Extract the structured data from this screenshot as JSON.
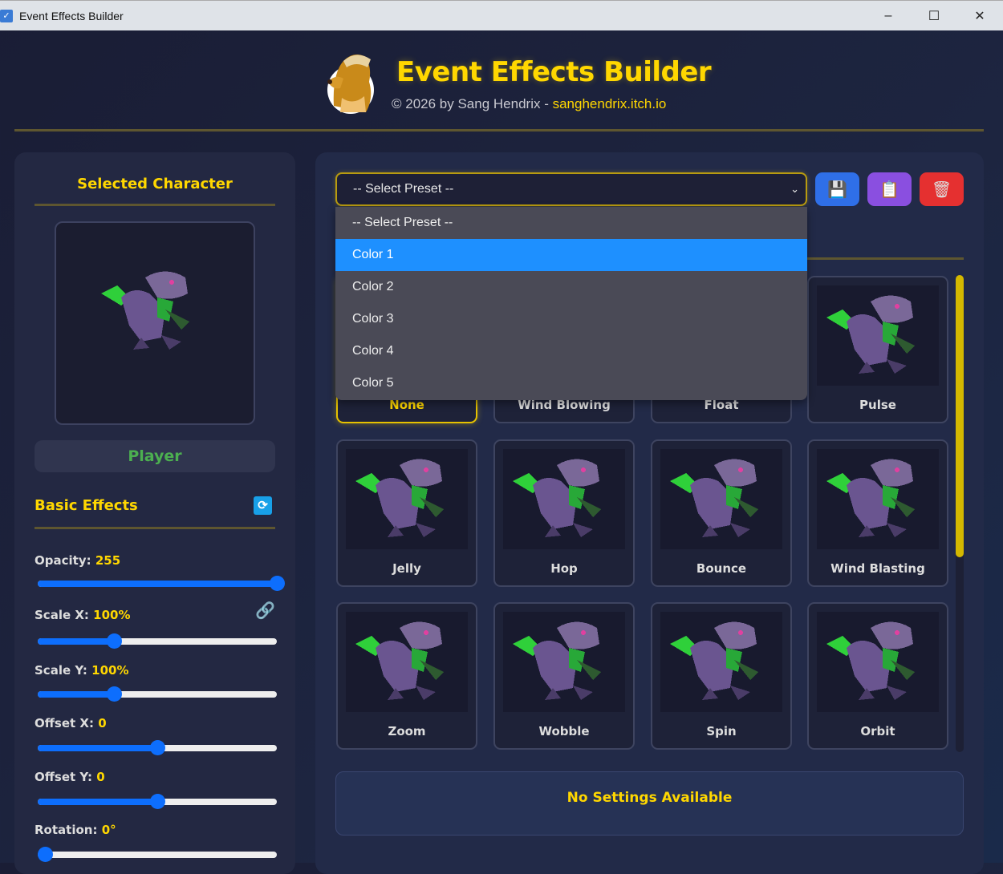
{
  "window": {
    "title": "Event Effects Builder",
    "minimize": "–",
    "maximize": "☐",
    "close": "✕"
  },
  "header": {
    "title": "Event Effects Builder",
    "credit": "© 2026 by Sang Hendrix - ",
    "link": "sanghendrix.itch.io"
  },
  "left": {
    "selected_title": "Selected Character",
    "character_name": "Player",
    "basic_title": "Basic Effects",
    "sliders": [
      {
        "label": "Opacity:",
        "value": "255",
        "level": 1.0
      },
      {
        "label": "Scale X:",
        "value": "100%",
        "level": 0.32
      },
      {
        "label": "Scale Y:",
        "value": "100%",
        "level": 0.32
      },
      {
        "label": "Offset X:",
        "value": "0",
        "level": 0.5
      },
      {
        "label": "Offset Y:",
        "value": "0",
        "level": 0.5
      },
      {
        "label": "Rotation:",
        "value": "0°",
        "level": 0.03
      }
    ]
  },
  "preset": {
    "selected": "-- Select Preset --",
    "options": [
      "-- Select Preset --",
      "Color 1",
      "Color 2",
      "Color 3",
      "Color 4",
      "Color 5"
    ],
    "highlighted": "Color 1"
  },
  "toolbar": {
    "save_icon": "💾",
    "copy_icon": "📋",
    "delete_icon": "🗑"
  },
  "effects": [
    "None",
    "Wind Blowing",
    "Float",
    "Pulse",
    "Jelly",
    "Hop",
    "Bounce",
    "Wind Blasting",
    "Zoom",
    "Wobble",
    "Spin",
    "Orbit"
  ],
  "selected_effect": "None",
  "settings": {
    "message": "No Settings Available"
  },
  "colors": {
    "accent": "#ffd700",
    "highlight": "#1e90ff",
    "slider": "#0d6efd",
    "player": "#4caf50"
  }
}
